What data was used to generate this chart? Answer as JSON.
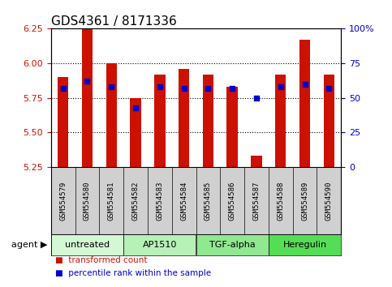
{
  "title": "GDS4361 / 8171336",
  "samples": [
    "GSM554579",
    "GSM554580",
    "GSM554581",
    "GSM554582",
    "GSM554583",
    "GSM554584",
    "GSM554585",
    "GSM554586",
    "GSM554587",
    "GSM554588",
    "GSM554589",
    "GSM554590"
  ],
  "red_values": [
    5.9,
    6.25,
    6.0,
    5.75,
    5.92,
    5.96,
    5.92,
    5.83,
    5.33,
    5.92,
    6.17,
    5.92
  ],
  "blue_values": [
    57,
    62,
    58,
    43,
    58,
    57,
    57,
    57,
    50,
    58,
    60,
    57
  ],
  "ylim_left": [
    5.25,
    6.25
  ],
  "ylim_right": [
    0,
    100
  ],
  "yticks_left": [
    5.25,
    5.5,
    5.75,
    6.0,
    6.25
  ],
  "yticks_right": [
    0,
    25,
    50,
    75,
    100
  ],
  "ytick_labels_right": [
    "0",
    "25",
    "50",
    "75",
    "100%"
  ],
  "groups": [
    {
      "label": "untreated",
      "start": 0,
      "end": 3,
      "color": "#d4f7d4"
    },
    {
      "label": "AP1510",
      "start": 3,
      "end": 6,
      "color": "#b8f0b8"
    },
    {
      "label": "TGF-alpha",
      "start": 6,
      "end": 9,
      "color": "#90e890"
    },
    {
      "label": "Heregulin",
      "start": 9,
      "end": 12,
      "color": "#55dd55"
    }
  ],
  "bar_color": "#cc1100",
  "blue_color": "#0000cc",
  "bar_width": 0.45,
  "ybase": 5.25,
  "agent_label": "agent",
  "legend_items": [
    {
      "label": "transformed count",
      "color": "#cc1100"
    },
    {
      "label": "percentile rank within the sample",
      "color": "#0000cc"
    }
  ],
  "bg_color": "#ffffff",
  "tick_color_left": "#cc1100",
  "tick_color_right": "#0000cc",
  "title_fontsize": 11,
  "tick_fontsize": 8,
  "sample_label_fontsize": 6.5,
  "group_label_fontsize": 8,
  "legend_fontsize": 7.5,
  "gray_bg": "#d0d0d0",
  "dotted_yticks": [
    5.5,
    5.75,
    6.0
  ]
}
